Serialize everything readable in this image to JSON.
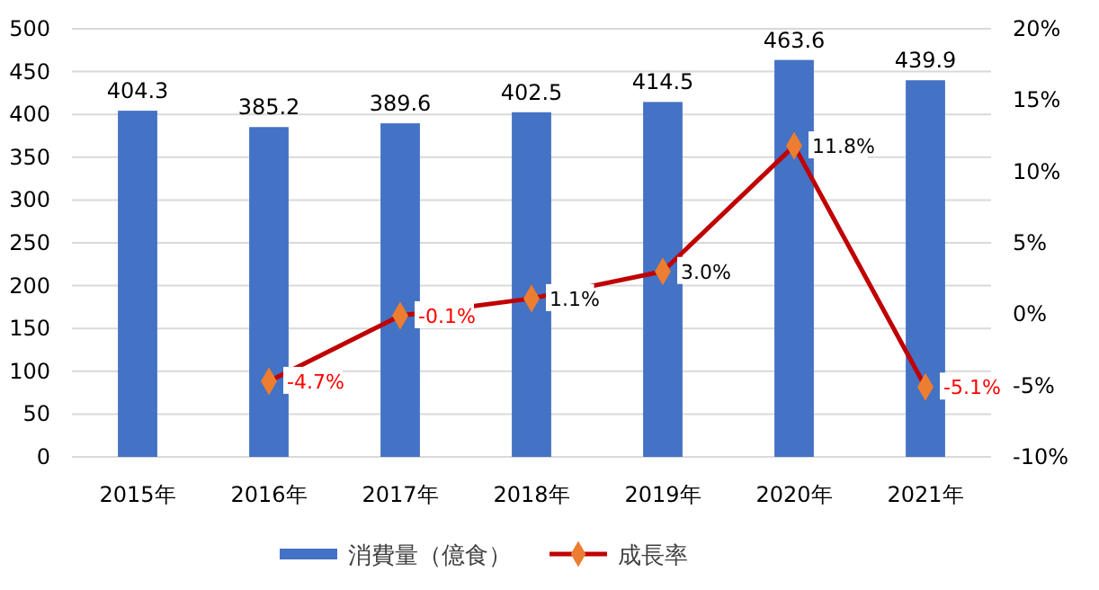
{
  "chart_data": {
    "type": "bar",
    "categories": [
      "2015年",
      "2016年",
      "2017年",
      "2018年",
      "2019年",
      "2020年",
      "2021年"
    ],
    "series": [
      {
        "name": "消費量（億食）",
        "color": "#4472c4",
        "values": [
          404.3,
          385.2,
          389.6,
          402.5,
          414.5,
          463.6,
          439.9
        ],
        "value_labels": [
          "404.3",
          "385.2",
          "389.6",
          "402.5",
          "414.5",
          "463.6",
          "439.9"
        ]
      },
      {
        "name": "成長率",
        "type": "line",
        "axis": "y2",
        "color": "#c00000",
        "colors": [
          null,
          "#ed7d31",
          "#ed7d31",
          "#ed7d31",
          "#ed7d31",
          "#ed7d31",
          "#ed7d31"
        ],
        "marker": "diamond",
        "values": [
          null,
          -4.7,
          -0.1,
          1.1,
          3.0,
          11.8,
          -5.1
        ],
        "value_labels": [
          null,
          "-4.7%",
          "-0.1%",
          "1.1%",
          "3.0%",
          "11.8%",
          "-5.1%"
        ]
      }
    ],
    "ylim": [
      0,
      500
    ],
    "yticks": [
      0,
      50,
      100,
      150,
      200,
      250,
      300,
      350,
      400,
      450,
      500
    ],
    "y2lim": [
      -10,
      20
    ],
    "y2ticks": [
      {
        "value": -10,
        "label": "-10%"
      },
      {
        "value": -5,
        "label": "-5%"
      },
      {
        "value": 0,
        "label": "0%"
      },
      {
        "value": 5,
        "label": "5%"
      },
      {
        "value": 10,
        "label": "10%"
      },
      {
        "value": 15,
        "label": "15%"
      },
      {
        "value": 20,
        "label": "20%"
      }
    ],
    "grid": "y",
    "legend": "bottom"
  }
}
